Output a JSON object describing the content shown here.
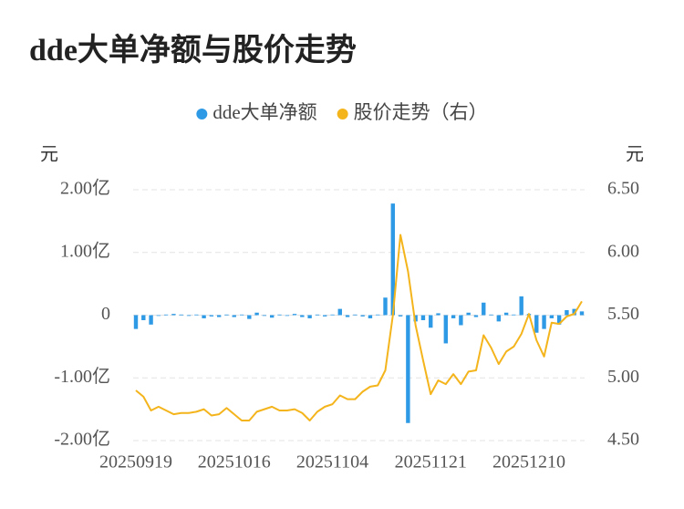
{
  "chart_data": {
    "type": "bar_line",
    "title": "dde大单净额与股价走势",
    "ylabel": "元",
    "y2label": "元",
    "categories": [
      "20250919",
      null,
      null,
      null,
      null,
      null,
      null,
      null,
      null,
      null,
      null,
      null,
      null,
      "20251016",
      null,
      null,
      null,
      null,
      null,
      null,
      null,
      null,
      null,
      null,
      null,
      null,
      "20251104",
      null,
      null,
      null,
      null,
      null,
      null,
      null,
      null,
      null,
      null,
      null,
      null,
      "20251121",
      null,
      null,
      null,
      null,
      null,
      null,
      null,
      null,
      null,
      null,
      null,
      null,
      "20251210",
      null,
      null,
      null,
      null,
      null,
      null,
      null
    ],
    "ylim": [
      -2,
      2
    ],
    "yticks": [
      {
        "value": -2,
        "label": "-2.00亿"
      },
      {
        "value": -1,
        "label": "-1.00亿"
      },
      0,
      {
        "value": 1,
        "label": "1.00亿"
      },
      {
        "value": 2,
        "label": "2.00亿"
      }
    ],
    "y2lim": [
      4.5,
      6.5
    ],
    "y2ticks": [
      {
        "value": 4.5,
        "label": "4.50"
      },
      {
        "value": 5,
        "label": "5.00"
      },
      {
        "value": 5.5,
        "label": "5.50"
      },
      {
        "value": 6,
        "label": "6.00"
      },
      {
        "value": 6.5,
        "label": "6.50"
      }
    ],
    "grid": true,
    "legend": "top",
    "series": [
      {
        "name": "dde大单净额",
        "type": "bar",
        "color": "#2e9ae6",
        "values": [
          -0.22,
          -0.08,
          -0.15,
          -0.01,
          0.01,
          0.02,
          0.01,
          0,
          0.01,
          -0.05,
          -0.02,
          -0.03,
          0.01,
          -0.03,
          0.01,
          -0.06,
          0.04,
          -0.01,
          -0.04,
          0.01,
          -0.01,
          0.02,
          -0.03,
          -0.05,
          0.01,
          -0.02,
          0.01,
          0.1,
          -0.03,
          0.01,
          -0.02,
          -0.05,
          0.01,
          0.28,
          1.78,
          -0.02,
          -1.72,
          -0.1,
          -0.08,
          -0.2,
          0.03,
          -0.45,
          -0.05,
          -0.16,
          0.04,
          -0.03,
          0.2,
          0.01,
          -0.1,
          0.04,
          0.01,
          0.3,
          0.02,
          -0.28,
          -0.22,
          -0.05,
          -0.15,
          0.08,
          0.1,
          0.06
        ]
      },
      {
        "name": "股价走势（右）",
        "type": "line",
        "axis": "y2",
        "color": "#f4b41c",
        "values": [
          4.9,
          4.85,
          4.74,
          4.77,
          4.74,
          4.71,
          4.72,
          4.72,
          4.73,
          4.75,
          4.7,
          4.71,
          4.76,
          4.71,
          4.66,
          4.66,
          4.73,
          4.75,
          4.77,
          4.74,
          4.74,
          4.75,
          4.72,
          4.66,
          4.73,
          4.77,
          4.79,
          4.86,
          4.83,
          4.83,
          4.89,
          4.93,
          4.94,
          5.06,
          5.5,
          6.14,
          5.85,
          5.42,
          5.14,
          4.87,
          4.98,
          4.95,
          5.03,
          4.95,
          5.05,
          5.06,
          5.34,
          5.24,
          5.11,
          5.21,
          5.25,
          5.35,
          5.51,
          5.3,
          5.17,
          5.44,
          5.43,
          5.49,
          5.51,
          5.61
        ]
      }
    ]
  }
}
